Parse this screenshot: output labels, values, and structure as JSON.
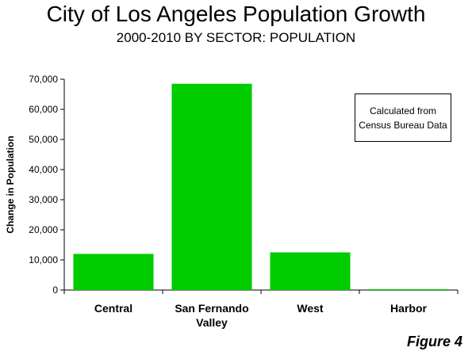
{
  "title": "City of Los Angeles Population Growth",
  "subtitle": "2000-2010 BY SECTOR: POPULATION",
  "figure_label": "Figure 4",
  "note": {
    "line1": "Calculated from",
    "line2": "Census Bureau Data"
  },
  "colors": {
    "bar": "#00CC00",
    "axis": "#000000"
  },
  "chart_data": {
    "type": "bar",
    "title": "City of Los Angeles Population Growth",
    "subtitle": "2000-2010 BY SECTOR: POPULATION",
    "categories": [
      "Central",
      "San Fernando\nValley",
      "West",
      "Harbor"
    ],
    "values": [
      12000,
      68500,
      12500,
      300
    ],
    "xlabel": "",
    "ylabel": "Change in Population",
    "ylim": [
      0,
      70000
    ],
    "yticks": [
      0,
      10000,
      20000,
      30000,
      40000,
      50000,
      60000,
      70000
    ],
    "ytick_labels": [
      "0",
      "10,000",
      "20,000",
      "30,000",
      "40,000",
      "50,000",
      "60,000",
      "70,000"
    ],
    "grid": false,
    "legend": "none"
  }
}
